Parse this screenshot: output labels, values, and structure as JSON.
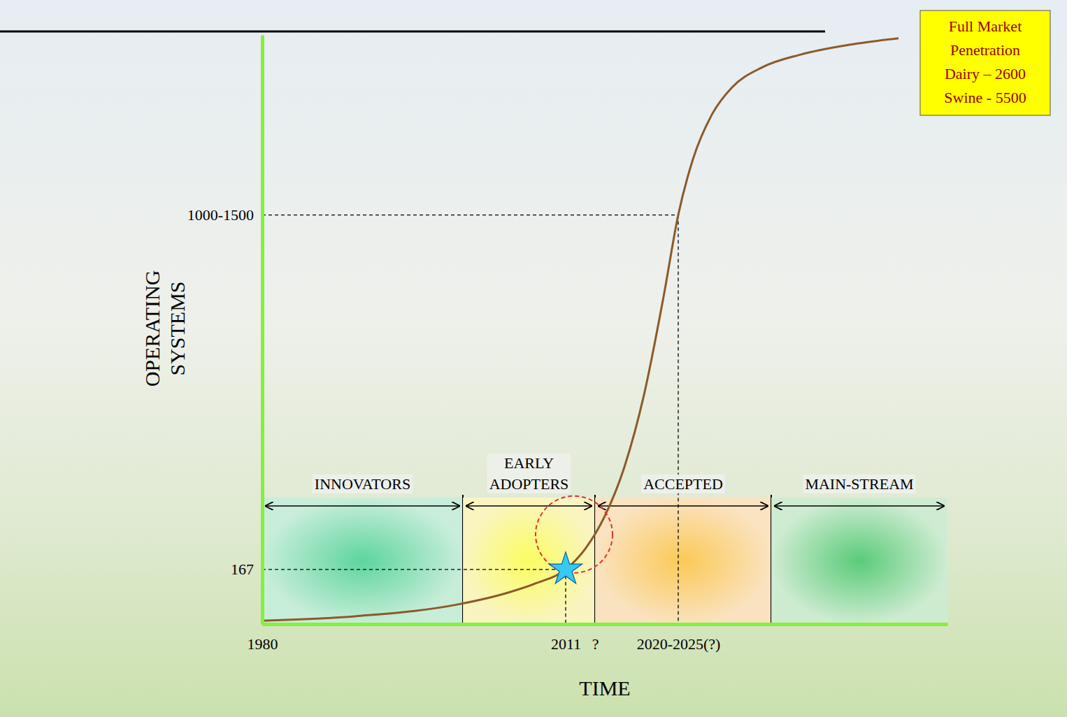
{
  "chart_data": {
    "type": "line",
    "x_label": "TIME",
    "y_label": "OPERATING SYSTEMS",
    "x": [
      1980,
      1990,
      2000,
      2005,
      2008,
      2011,
      2013,
      2015,
      2017,
      2019,
      2021,
      2022.5,
      2024,
      2026,
      2028,
      2031,
      2035,
      2040,
      2045
    ],
    "values": [
      10,
      25,
      60,
      95,
      125,
      167,
      230,
      330,
      480,
      700,
      1000,
      1250,
      1420,
      1560,
      1640,
      1700,
      1740,
      1770,
      1790
    ],
    "color": "#8b5a2b",
    "xlim": [
      1980,
      2050
    ],
    "xticks": [
      1980,
      2011,
      {
        "value": 2014,
        "label": "?"
      },
      {
        "value": 2022.5,
        "label": "2020-2025(?)"
      }
    ],
    "ylim": [
      0,
      1800
    ],
    "yticks": [
      167,
      {
        "value": 1250,
        "label": "1000-1500"
      }
    ],
    "grid": false,
    "phases": [
      {
        "label": "INNOVATORS",
        "start": 1980,
        "end": 2000.5
      },
      {
        "label": "EARLY ADOPTERS",
        "start": 2000.5,
        "end": 2014
      },
      {
        "label": "ACCEPTED",
        "start": 2014,
        "end": 2032
      },
      {
        "label": "MAIN-STREAM",
        "start": 2032,
        "end": 2050
      }
    ],
    "guides": [
      {
        "x": 2011,
        "y": 167
      },
      {
        "x": 2022.5,
        "y": 1250
      }
    ],
    "marked_point": {
      "x": 2011,
      "y": 167
    },
    "annotation": [
      "Full Market Penetration",
      "Dairy – 2600",
      "Swine - 5500"
    ]
  }
}
